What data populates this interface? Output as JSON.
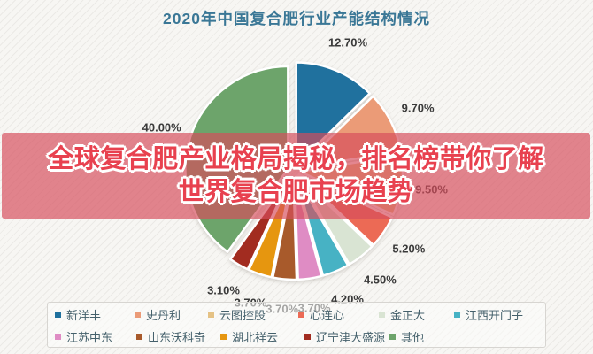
{
  "page": {
    "background": "#f7f6f3"
  },
  "chart_data": {
    "type": "pie",
    "title": "2020年中国复合肥行业产能结构情况",
    "title_color": "#3a7796",
    "legend_position": "bottom",
    "legend_rows": [
      6,
      5
    ],
    "start_angle_deg": 0,
    "clockwise": true,
    "exploded": true,
    "series": [
      {
        "name": "新洋丰",
        "value": 12.7,
        "label": "12.70%",
        "color": "#20719e"
      },
      {
        "name": "史丹利",
        "value": 9.7,
        "label": "9.70%",
        "color": "#eb9b77"
      },
      {
        "name": "云图控股",
        "value": 9.5,
        "label": "9.50%",
        "color": "#e5c285"
      },
      {
        "name": "心连心",
        "value": 5.2,
        "label": "5.20%",
        "color": "#ec6a55"
      },
      {
        "name": "金正大",
        "value": 4.5,
        "label": "4.50%",
        "color": "#d9e4d3"
      },
      {
        "name": "江西开门子",
        "value": 4.2,
        "label": "4.20%",
        "color": "#47b2c4"
      },
      {
        "name": "江苏中东",
        "value": 3.7,
        "label": "3.70%",
        "color": "#df8cc4"
      },
      {
        "name": "山东沃科奇",
        "value": 3.7,
        "label": "3.70%",
        "color": "#a85a2b"
      },
      {
        "name": "湖北祥云",
        "value": 3.7,
        "label": "3.70%",
        "color": "#e6960f"
      },
      {
        "name": "辽宁津大盛源",
        "value": 3.1,
        "label": "3.10%",
        "color": "#a22c20"
      },
      {
        "name": "其他",
        "value": 40.0,
        "label": "40.00%",
        "color": "#6da46b"
      }
    ]
  },
  "overlay": {
    "line1": "全球复合肥产业格局揭秘，排名榜带你了解",
    "line2": "世界复合肥市场趋势",
    "text_color": "#e8414f",
    "banner_color": "rgba(214,77,92,0.68)"
  }
}
